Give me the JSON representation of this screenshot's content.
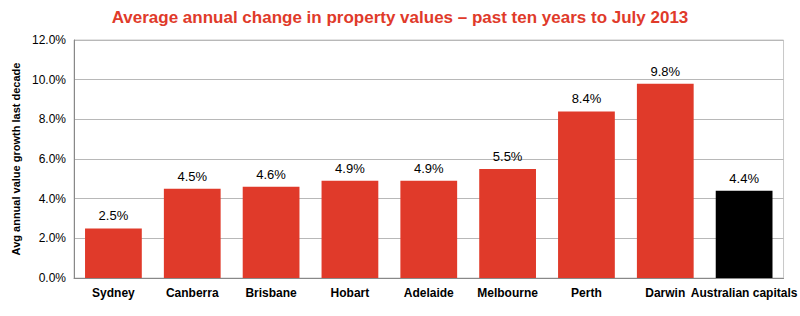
{
  "chart_data": {
    "type": "bar",
    "title": "Average annual change in property values – past ten years to July 2013",
    "y_label": "Avg annual value growth last decade",
    "categories": [
      "Sydney",
      "Canberra",
      "Brisbane",
      "Hobart",
      "Adelaide",
      "Melbourne",
      "Perth",
      "Darwin",
      "Australian capitals"
    ],
    "values": [
      2.5,
      4.5,
      4.6,
      4.9,
      4.9,
      5.5,
      8.4,
      9.8,
      4.4
    ],
    "value_labels": [
      "2.5%",
      "4.5%",
      "4.6%",
      "4.9%",
      "4.9%",
      "5.5%",
      "8.4%",
      "9.8%",
      "4.4%"
    ],
    "colors": [
      "#e03a2a",
      "#e03a2a",
      "#e03a2a",
      "#e03a2a",
      "#e03a2a",
      "#e03a2a",
      "#e03a2a",
      "#e03a2a",
      "#000000"
    ],
    "ylim": [
      0,
      12
    ],
    "yticks": [
      {
        "value": 0,
        "label": "0.0%"
      },
      {
        "value": 2,
        "label": "2.0%"
      },
      {
        "value": 4,
        "label": "4.0%"
      },
      {
        "value": 6,
        "label": "6.0%"
      },
      {
        "value": 8,
        "label": "8.0%"
      },
      {
        "value": 10,
        "label": "10.0%"
      },
      {
        "value": 12,
        "label": "12.0%"
      }
    ],
    "grid": true,
    "data_labels": true
  }
}
